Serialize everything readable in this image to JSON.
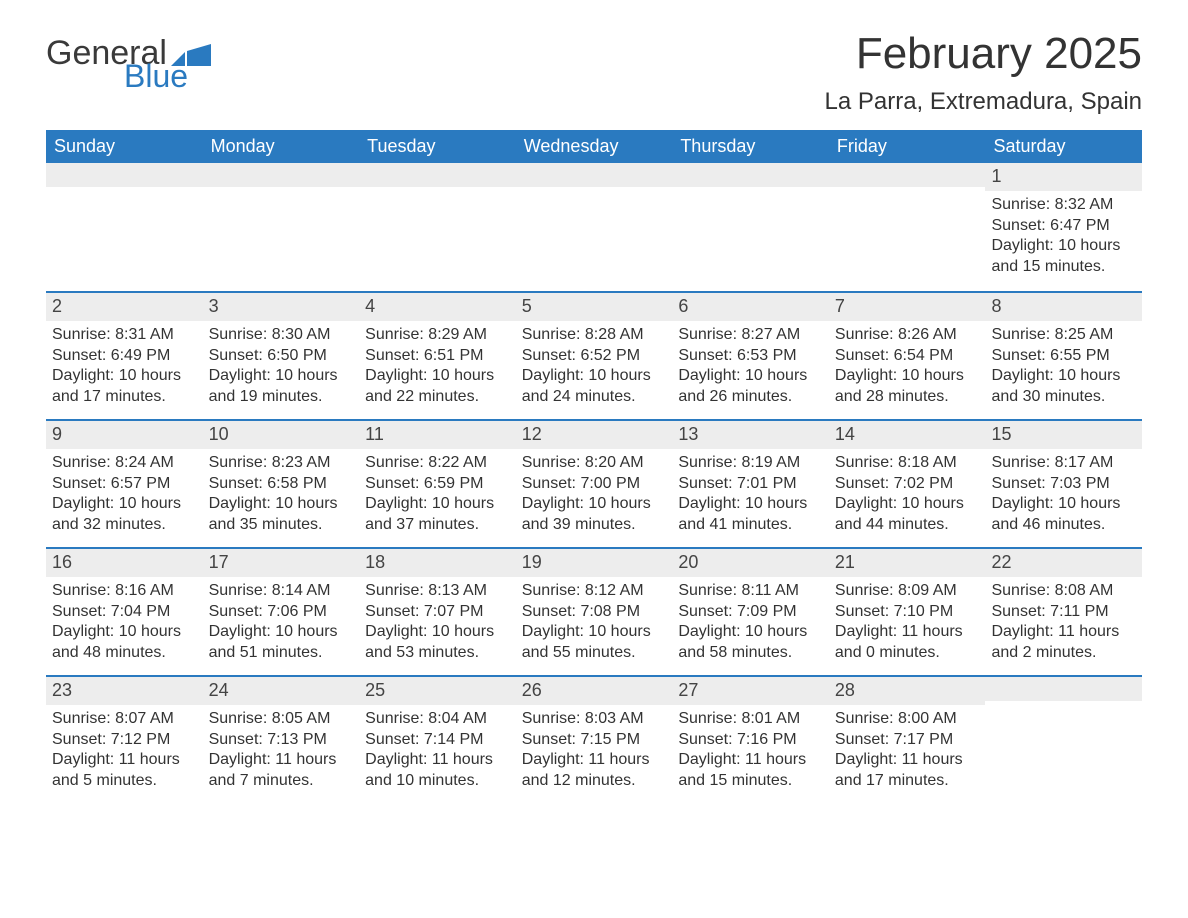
{
  "logo": {
    "text1": "General",
    "text2": "Blue",
    "icon_color": "#2a7ac0",
    "text1_color": "#3a3a3a",
    "text2_color": "#2a7ac0"
  },
  "title": "February 2025",
  "location": "La Parra, Extremadura, Spain",
  "colors": {
    "header_bg": "#2a7ac0",
    "header_fg": "#ffffff",
    "row_sep": "#2a7ac0",
    "daynum_bg": "#ededed",
    "text": "#333333",
    "bg": "#ffffff"
  },
  "weekdays": [
    "Sunday",
    "Monday",
    "Tuesday",
    "Wednesday",
    "Thursday",
    "Friday",
    "Saturday"
  ],
  "weeks": [
    [
      {
        "n": "",
        "sunrise": "",
        "sunset": "",
        "day": ""
      },
      {
        "n": "",
        "sunrise": "",
        "sunset": "",
        "day": ""
      },
      {
        "n": "",
        "sunrise": "",
        "sunset": "",
        "day": ""
      },
      {
        "n": "",
        "sunrise": "",
        "sunset": "",
        "day": ""
      },
      {
        "n": "",
        "sunrise": "",
        "sunset": "",
        "day": ""
      },
      {
        "n": "",
        "sunrise": "",
        "sunset": "",
        "day": ""
      },
      {
        "n": "1",
        "sunrise": "Sunrise: 8:32 AM",
        "sunset": "Sunset: 6:47 PM",
        "day": "Daylight: 10 hours and 15 minutes."
      }
    ],
    [
      {
        "n": "2",
        "sunrise": "Sunrise: 8:31 AM",
        "sunset": "Sunset: 6:49 PM",
        "day": "Daylight: 10 hours and 17 minutes."
      },
      {
        "n": "3",
        "sunrise": "Sunrise: 8:30 AM",
        "sunset": "Sunset: 6:50 PM",
        "day": "Daylight: 10 hours and 19 minutes."
      },
      {
        "n": "4",
        "sunrise": "Sunrise: 8:29 AM",
        "sunset": "Sunset: 6:51 PM",
        "day": "Daylight: 10 hours and 22 minutes."
      },
      {
        "n": "5",
        "sunrise": "Sunrise: 8:28 AM",
        "sunset": "Sunset: 6:52 PM",
        "day": "Daylight: 10 hours and 24 minutes."
      },
      {
        "n": "6",
        "sunrise": "Sunrise: 8:27 AM",
        "sunset": "Sunset: 6:53 PM",
        "day": "Daylight: 10 hours and 26 minutes."
      },
      {
        "n": "7",
        "sunrise": "Sunrise: 8:26 AM",
        "sunset": "Sunset: 6:54 PM",
        "day": "Daylight: 10 hours and 28 minutes."
      },
      {
        "n": "8",
        "sunrise": "Sunrise: 8:25 AM",
        "sunset": "Sunset: 6:55 PM",
        "day": "Daylight: 10 hours and 30 minutes."
      }
    ],
    [
      {
        "n": "9",
        "sunrise": "Sunrise: 8:24 AM",
        "sunset": "Sunset: 6:57 PM",
        "day": "Daylight: 10 hours and 32 minutes."
      },
      {
        "n": "10",
        "sunrise": "Sunrise: 8:23 AM",
        "sunset": "Sunset: 6:58 PM",
        "day": "Daylight: 10 hours and 35 minutes."
      },
      {
        "n": "11",
        "sunrise": "Sunrise: 8:22 AM",
        "sunset": "Sunset: 6:59 PM",
        "day": "Daylight: 10 hours and 37 minutes."
      },
      {
        "n": "12",
        "sunrise": "Sunrise: 8:20 AM",
        "sunset": "Sunset: 7:00 PM",
        "day": "Daylight: 10 hours and 39 minutes."
      },
      {
        "n": "13",
        "sunrise": "Sunrise: 8:19 AM",
        "sunset": "Sunset: 7:01 PM",
        "day": "Daylight: 10 hours and 41 minutes."
      },
      {
        "n": "14",
        "sunrise": "Sunrise: 8:18 AM",
        "sunset": "Sunset: 7:02 PM",
        "day": "Daylight: 10 hours and 44 minutes."
      },
      {
        "n": "15",
        "sunrise": "Sunrise: 8:17 AM",
        "sunset": "Sunset: 7:03 PM",
        "day": "Daylight: 10 hours and 46 minutes."
      }
    ],
    [
      {
        "n": "16",
        "sunrise": "Sunrise: 8:16 AM",
        "sunset": "Sunset: 7:04 PM",
        "day": "Daylight: 10 hours and 48 minutes."
      },
      {
        "n": "17",
        "sunrise": "Sunrise: 8:14 AM",
        "sunset": "Sunset: 7:06 PM",
        "day": "Daylight: 10 hours and 51 minutes."
      },
      {
        "n": "18",
        "sunrise": "Sunrise: 8:13 AM",
        "sunset": "Sunset: 7:07 PM",
        "day": "Daylight: 10 hours and 53 minutes."
      },
      {
        "n": "19",
        "sunrise": "Sunrise: 8:12 AM",
        "sunset": "Sunset: 7:08 PM",
        "day": "Daylight: 10 hours and 55 minutes."
      },
      {
        "n": "20",
        "sunrise": "Sunrise: 8:11 AM",
        "sunset": "Sunset: 7:09 PM",
        "day": "Daylight: 10 hours and 58 minutes."
      },
      {
        "n": "21",
        "sunrise": "Sunrise: 8:09 AM",
        "sunset": "Sunset: 7:10 PM",
        "day": "Daylight: 11 hours and 0 minutes."
      },
      {
        "n": "22",
        "sunrise": "Sunrise: 8:08 AM",
        "sunset": "Sunset: 7:11 PM",
        "day": "Daylight: 11 hours and 2 minutes."
      }
    ],
    [
      {
        "n": "23",
        "sunrise": "Sunrise: 8:07 AM",
        "sunset": "Sunset: 7:12 PM",
        "day": "Daylight: 11 hours and 5 minutes."
      },
      {
        "n": "24",
        "sunrise": "Sunrise: 8:05 AM",
        "sunset": "Sunset: 7:13 PM",
        "day": "Daylight: 11 hours and 7 minutes."
      },
      {
        "n": "25",
        "sunrise": "Sunrise: 8:04 AM",
        "sunset": "Sunset: 7:14 PM",
        "day": "Daylight: 11 hours and 10 minutes."
      },
      {
        "n": "26",
        "sunrise": "Sunrise: 8:03 AM",
        "sunset": "Sunset: 7:15 PM",
        "day": "Daylight: 11 hours and 12 minutes."
      },
      {
        "n": "27",
        "sunrise": "Sunrise: 8:01 AM",
        "sunset": "Sunset: 7:16 PM",
        "day": "Daylight: 11 hours and 15 minutes."
      },
      {
        "n": "28",
        "sunrise": "Sunrise: 8:00 AM",
        "sunset": "Sunset: 7:17 PM",
        "day": "Daylight: 11 hours and 17 minutes."
      },
      {
        "n": "",
        "sunrise": "",
        "sunset": "",
        "day": ""
      }
    ]
  ]
}
